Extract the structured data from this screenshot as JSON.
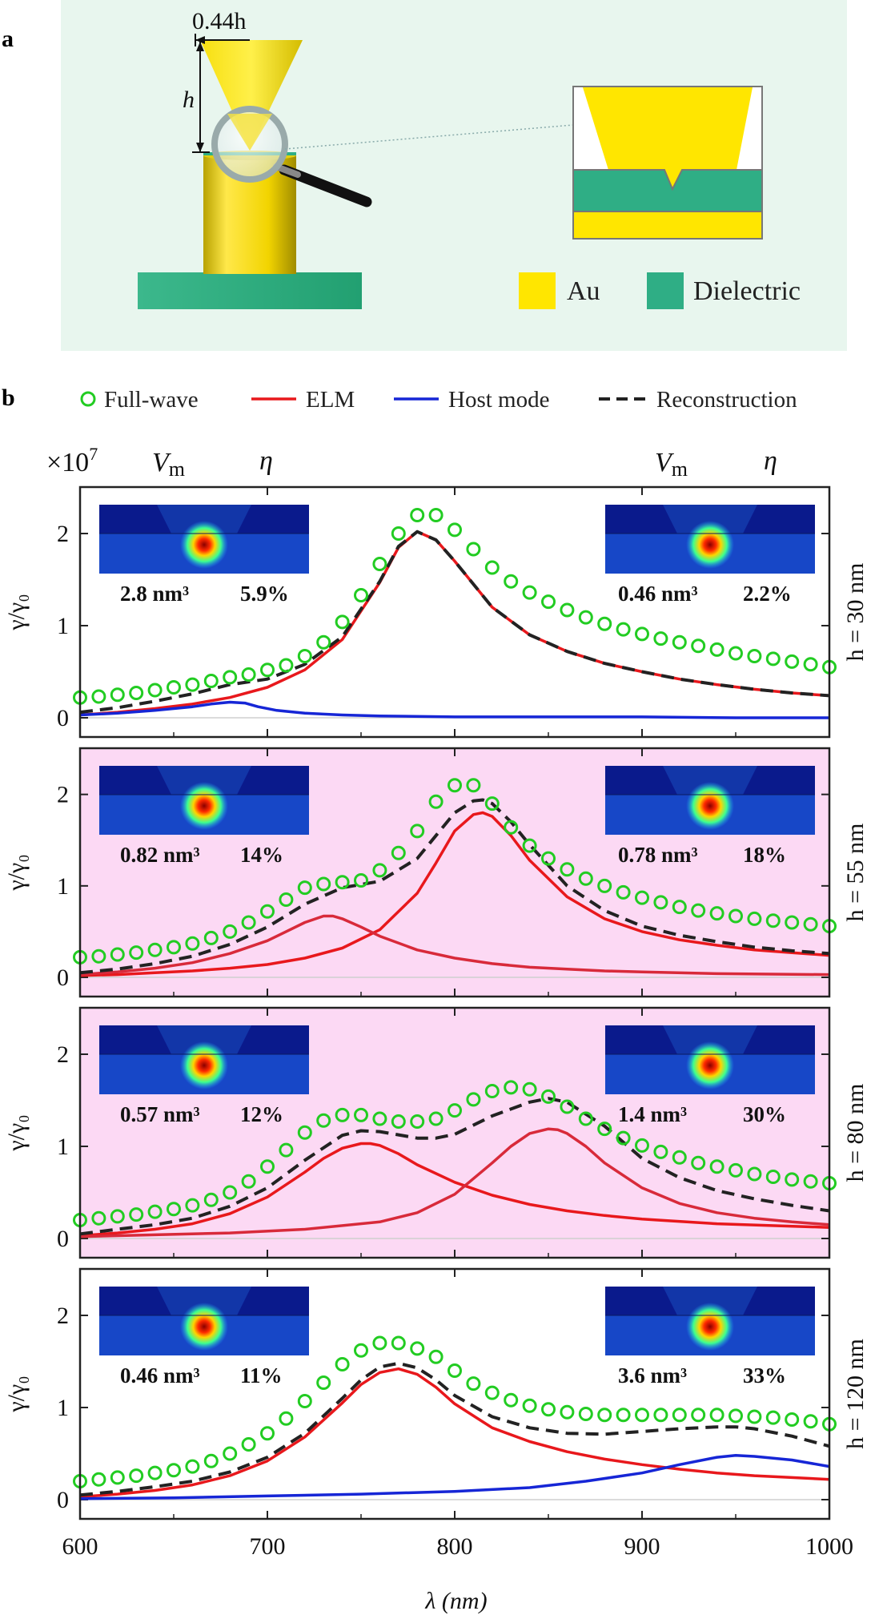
{
  "panel_a": {
    "label": "a",
    "dimension_top": "0.44h",
    "dimension_height": "h",
    "materials": [
      {
        "name": "Au",
        "color": "#ffe600"
      },
      {
        "name": "Dielectric",
        "color": "#2fae85"
      }
    ],
    "background_color": "#e8f6ee"
  },
  "panel_b": {
    "label": "b",
    "legend": [
      {
        "name": "Full-wave",
        "style": "circle",
        "color": "#22cc22"
      },
      {
        "name": "ELM",
        "style": "line",
        "color": "#e8181c"
      },
      {
        "name": "Host mode",
        "style": "line",
        "color": "#1626d6"
      },
      {
        "name": "Reconstruction",
        "style": "dash",
        "color": "#222222"
      }
    ],
    "scale_note": "×10",
    "scale_exp": "7",
    "col_headers": {
      "vm": "V",
      "vm_sub": "m",
      "eta": "η"
    },
    "x_axis_label": "λ (nm)",
    "y_axis_label": "γ/γ₀"
  },
  "chart_data": [
    {
      "type": "line",
      "panel": "h = 30 nm",
      "h_label": "h = 30 nm",
      "background": "#ffffff",
      "xlim": [
        600,
        1000
      ],
      "ylim": [
        0,
        2.4
      ],
      "xticks": [
        600,
        700,
        800,
        900,
        1000
      ],
      "yticks": [
        0,
        1,
        2
      ],
      "left_mode": {
        "vm": "2.8 nm³",
        "eta": "5.9%"
      },
      "right_mode": {
        "vm": "0.46 nm³",
        "eta": "2.2%"
      },
      "fullwave": {
        "x": [
          600,
          610,
          620,
          630,
          640,
          650,
          660,
          670,
          680,
          690,
          700,
          710,
          720,
          730,
          740,
          750,
          760,
          770,
          780,
          790,
          800,
          810,
          820,
          830,
          840,
          850,
          860,
          870,
          880,
          890,
          900,
          910,
          920,
          930,
          940,
          950,
          960,
          970,
          980,
          990,
          1000
        ],
        "y": [
          0.22,
          0.23,
          0.25,
          0.27,
          0.3,
          0.33,
          0.36,
          0.4,
          0.44,
          0.47,
          0.52,
          0.57,
          0.67,
          0.82,
          1.04,
          1.33,
          1.67,
          2.0,
          2.2,
          2.2,
          2.04,
          1.83,
          1.63,
          1.48,
          1.36,
          1.26,
          1.17,
          1.09,
          1.02,
          0.96,
          0.91,
          0.86,
          0.82,
          0.78,
          0.74,
          0.7,
          0.67,
          0.64,
          0.61,
          0.58,
          0.55
        ]
      },
      "series": [
        {
          "name": "ELM",
          "color": "#e8181c",
          "x": [
            600,
            620,
            640,
            660,
            680,
            700,
            720,
            740,
            760,
            770,
            780,
            790,
            800,
            820,
            840,
            860,
            880,
            900,
            920,
            940,
            960,
            980,
            1000
          ],
          "y": [
            0.03,
            0.06,
            0.1,
            0.15,
            0.22,
            0.33,
            0.52,
            0.85,
            1.47,
            1.85,
            2.02,
            1.93,
            1.7,
            1.2,
            0.9,
            0.72,
            0.59,
            0.5,
            0.42,
            0.36,
            0.31,
            0.27,
            0.24
          ]
        },
        {
          "name": "Host mode",
          "color": "#1626d6",
          "x": [
            600,
            620,
            640,
            660,
            670,
            680,
            688,
            695,
            705,
            720,
            740,
            760,
            800,
            850,
            900,
            950,
            1000
          ],
          "y": [
            0.03,
            0.05,
            0.08,
            0.12,
            0.15,
            0.17,
            0.16,
            0.12,
            0.08,
            0.05,
            0.03,
            0.02,
            0.01,
            0.01,
            0.01,
            0.0,
            0.0
          ]
        },
        {
          "name": "Reconstruction",
          "color": "#222222",
          "dash": true,
          "x": [
            600,
            620,
            640,
            660,
            680,
            700,
            720,
            740,
            760,
            770,
            780,
            790,
            800,
            820,
            840,
            860,
            880,
            900,
            920,
            940,
            960,
            980,
            1000
          ],
          "y": [
            0.06,
            0.11,
            0.18,
            0.26,
            0.36,
            0.42,
            0.58,
            0.88,
            1.48,
            1.86,
            2.02,
            1.93,
            1.7,
            1.2,
            0.9,
            0.72,
            0.59,
            0.5,
            0.42,
            0.36,
            0.31,
            0.27,
            0.24
          ]
        }
      ]
    },
    {
      "type": "line",
      "panel": "h = 55 nm",
      "h_label": "h = 55 nm",
      "background": "#fcd9f4",
      "xlim": [
        600,
        1000
      ],
      "ylim": [
        0,
        2.4
      ],
      "xticks": [
        600,
        700,
        800,
        900,
        1000
      ],
      "yticks": [
        0,
        1,
        2
      ],
      "left_mode": {
        "vm": "0.82 nm³",
        "eta": "14%"
      },
      "right_mode": {
        "vm": "0.78 nm³",
        "eta": "18%"
      },
      "fullwave": {
        "x": [
          600,
          610,
          620,
          630,
          640,
          650,
          660,
          670,
          680,
          690,
          700,
          710,
          720,
          730,
          740,
          750,
          760,
          770,
          780,
          790,
          800,
          810,
          820,
          830,
          840,
          850,
          860,
          870,
          880,
          890,
          900,
          910,
          920,
          930,
          940,
          950,
          960,
          970,
          980,
          990,
          1000
        ],
        "y": [
          0.22,
          0.23,
          0.25,
          0.27,
          0.3,
          0.33,
          0.37,
          0.43,
          0.5,
          0.6,
          0.72,
          0.85,
          0.98,
          1.02,
          1.04,
          1.06,
          1.17,
          1.36,
          1.6,
          1.92,
          2.1,
          2.1,
          1.9,
          1.64,
          1.44,
          1.3,
          1.18,
          1.08,
          1.0,
          0.93,
          0.87,
          0.82,
          0.77,
          0.73,
          0.7,
          0.67,
          0.64,
          0.62,
          0.6,
          0.58,
          0.56
        ]
      },
      "series": [
        {
          "name": "ELM",
          "color": "#e8181c",
          "x": [
            600,
            620,
            640,
            660,
            680,
            700,
            720,
            740,
            760,
            780,
            790,
            800,
            810,
            815,
            820,
            830,
            840,
            860,
            880,
            900,
            920,
            940,
            960,
            980,
            1000
          ],
          "y": [
            0.02,
            0.03,
            0.05,
            0.07,
            0.1,
            0.14,
            0.21,
            0.32,
            0.52,
            0.92,
            1.25,
            1.6,
            1.78,
            1.8,
            1.76,
            1.55,
            1.28,
            0.88,
            0.64,
            0.5,
            0.41,
            0.35,
            0.3,
            0.27,
            0.24
          ]
        },
        {
          "name": "ELM",
          "color": "#d82a3a",
          "x": [
            600,
            620,
            640,
            660,
            680,
            700,
            710,
            720,
            730,
            735,
            740,
            750,
            760,
            780,
            800,
            820,
            840,
            860,
            880,
            900,
            940,
            1000
          ],
          "y": [
            0.03,
            0.06,
            0.1,
            0.16,
            0.26,
            0.4,
            0.5,
            0.6,
            0.67,
            0.67,
            0.64,
            0.55,
            0.45,
            0.3,
            0.21,
            0.15,
            0.11,
            0.09,
            0.07,
            0.06,
            0.04,
            0.03
          ]
        },
        {
          "name": "Reconstruction",
          "color": "#222222",
          "dash": true,
          "x": [
            600,
            620,
            640,
            660,
            680,
            700,
            720,
            740,
            760,
            780,
            800,
            810,
            815,
            820,
            830,
            840,
            860,
            880,
            900,
            920,
            940,
            960,
            980,
            1000
          ],
          "y": [
            0.05,
            0.09,
            0.15,
            0.23,
            0.36,
            0.55,
            0.8,
            0.98,
            1.05,
            1.3,
            1.8,
            1.93,
            1.94,
            1.9,
            1.7,
            1.45,
            1.0,
            0.73,
            0.56,
            0.46,
            0.39,
            0.33,
            0.29,
            0.26
          ]
        }
      ]
    },
    {
      "type": "line",
      "panel": "h = 80 nm",
      "h_label": "h = 80 nm",
      "background": "#fcd9f4",
      "xlim": [
        600,
        1000
      ],
      "ylim": [
        0,
        2.4
      ],
      "xticks": [
        600,
        700,
        800,
        900,
        1000
      ],
      "yticks": [
        0,
        1,
        2
      ],
      "left_mode": {
        "vm": "0.57 nm³",
        "eta": "12%"
      },
      "right_mode": {
        "vm": "1.4 nm³",
        "eta": "30%"
      },
      "fullwave": {
        "x": [
          600,
          610,
          620,
          630,
          640,
          650,
          660,
          670,
          680,
          690,
          700,
          710,
          720,
          730,
          740,
          750,
          760,
          770,
          780,
          790,
          800,
          810,
          820,
          830,
          840,
          850,
          860,
          870,
          880,
          890,
          900,
          910,
          920,
          930,
          940,
          950,
          960,
          970,
          980,
          990,
          1000
        ],
        "y": [
          0.2,
          0.22,
          0.24,
          0.26,
          0.29,
          0.32,
          0.36,
          0.42,
          0.5,
          0.62,
          0.78,
          0.96,
          1.15,
          1.28,
          1.34,
          1.34,
          1.3,
          1.27,
          1.27,
          1.3,
          1.39,
          1.51,
          1.6,
          1.64,
          1.62,
          1.54,
          1.43,
          1.3,
          1.19,
          1.09,
          1.01,
          0.94,
          0.88,
          0.82,
          0.78,
          0.74,
          0.7,
          0.67,
          0.64,
          0.62,
          0.6
        ]
      },
      "series": [
        {
          "name": "ELM",
          "color": "#e8181c",
          "x": [
            600,
            620,
            640,
            660,
            680,
            700,
            720,
            730,
            740,
            750,
            755,
            760,
            770,
            780,
            800,
            820,
            840,
            860,
            880,
            900,
            940,
            1000
          ],
          "y": [
            0.03,
            0.06,
            0.1,
            0.16,
            0.27,
            0.45,
            0.72,
            0.87,
            0.98,
            1.03,
            1.03,
            1.01,
            0.92,
            0.8,
            0.61,
            0.47,
            0.37,
            0.3,
            0.25,
            0.21,
            0.16,
            0.12
          ]
        },
        {
          "name": "ELM",
          "color": "#d82a3a",
          "x": [
            600,
            640,
            680,
            720,
            760,
            780,
            800,
            820,
            830,
            840,
            850,
            855,
            860,
            870,
            880,
            900,
            920,
            940,
            960,
            980,
            1000
          ],
          "y": [
            0.02,
            0.04,
            0.06,
            0.1,
            0.18,
            0.28,
            0.48,
            0.82,
            1.0,
            1.14,
            1.19,
            1.18,
            1.14,
            1.0,
            0.82,
            0.55,
            0.38,
            0.28,
            0.22,
            0.18,
            0.15
          ]
        },
        {
          "name": "Reconstruction",
          "color": "#222222",
          "dash": true,
          "x": [
            600,
            620,
            640,
            660,
            680,
            700,
            720,
            740,
            750,
            760,
            780,
            790,
            800,
            820,
            840,
            850,
            860,
            880,
            900,
            920,
            940,
            960,
            980,
            1000
          ],
          "y": [
            0.05,
            0.1,
            0.15,
            0.22,
            0.35,
            0.55,
            0.85,
            1.12,
            1.17,
            1.16,
            1.09,
            1.09,
            1.13,
            1.33,
            1.48,
            1.52,
            1.48,
            1.22,
            0.87,
            0.66,
            0.52,
            0.43,
            0.36,
            0.3
          ]
        }
      ]
    },
    {
      "type": "line",
      "panel": "h = 120 nm",
      "h_label": "h = 120 nm",
      "background": "#ffffff",
      "xlim": [
        600,
        1000
      ],
      "ylim": [
        0,
        2.4
      ],
      "xticks": [
        600,
        700,
        800,
        900,
        1000
      ],
      "yticks": [
        0,
        1,
        2
      ],
      "left_mode": {
        "vm": "0.46 nm³",
        "eta": "11%"
      },
      "right_mode": {
        "vm": "3.6 nm³",
        "eta": "33%"
      },
      "fullwave": {
        "x": [
          600,
          610,
          620,
          630,
          640,
          650,
          660,
          670,
          680,
          690,
          700,
          710,
          720,
          730,
          740,
          750,
          760,
          770,
          780,
          790,
          800,
          810,
          820,
          830,
          840,
          850,
          860,
          870,
          880,
          890,
          900,
          910,
          920,
          930,
          940,
          950,
          960,
          970,
          980,
          990,
          1000
        ],
        "y": [
          0.2,
          0.22,
          0.24,
          0.26,
          0.29,
          0.32,
          0.36,
          0.42,
          0.5,
          0.6,
          0.72,
          0.88,
          1.07,
          1.27,
          1.47,
          1.62,
          1.7,
          1.7,
          1.64,
          1.55,
          1.4,
          1.26,
          1.16,
          1.08,
          1.02,
          0.98,
          0.95,
          0.93,
          0.92,
          0.92,
          0.92,
          0.92,
          0.92,
          0.92,
          0.92,
          0.91,
          0.9,
          0.89,
          0.87,
          0.85,
          0.82
        ]
      },
      "series": [
        {
          "name": "ELM",
          "color": "#e8181c",
          "x": [
            600,
            620,
            640,
            660,
            680,
            700,
            720,
            740,
            750,
            760,
            770,
            780,
            790,
            800,
            820,
            840,
            860,
            880,
            900,
            920,
            940,
            960,
            980,
            1000
          ],
          "y": [
            0.03,
            0.06,
            0.1,
            0.16,
            0.26,
            0.42,
            0.68,
            1.05,
            1.25,
            1.38,
            1.42,
            1.36,
            1.22,
            1.04,
            0.78,
            0.63,
            0.52,
            0.44,
            0.38,
            0.33,
            0.29,
            0.26,
            0.24,
            0.22
          ]
        },
        {
          "name": "Host mode",
          "color": "#1626d6",
          "x": [
            600,
            650,
            700,
            750,
            800,
            840,
            870,
            900,
            920,
            940,
            950,
            960,
            980,
            1000
          ],
          "y": [
            0.01,
            0.02,
            0.04,
            0.06,
            0.09,
            0.13,
            0.2,
            0.29,
            0.38,
            0.46,
            0.48,
            0.47,
            0.43,
            0.36
          ]
        },
        {
          "name": "Reconstruction",
          "color": "#222222",
          "dash": true,
          "x": [
            600,
            620,
            640,
            660,
            680,
            700,
            720,
            740,
            750,
            760,
            770,
            780,
            790,
            800,
            820,
            840,
            860,
            880,
            900,
            920,
            940,
            950,
            960,
            980,
            1000
          ],
          "y": [
            0.05,
            0.09,
            0.14,
            0.2,
            0.3,
            0.46,
            0.72,
            1.1,
            1.3,
            1.44,
            1.48,
            1.43,
            1.3,
            1.13,
            0.9,
            0.78,
            0.72,
            0.71,
            0.74,
            0.77,
            0.79,
            0.79,
            0.77,
            0.69,
            0.58
          ]
        }
      ]
    }
  ]
}
